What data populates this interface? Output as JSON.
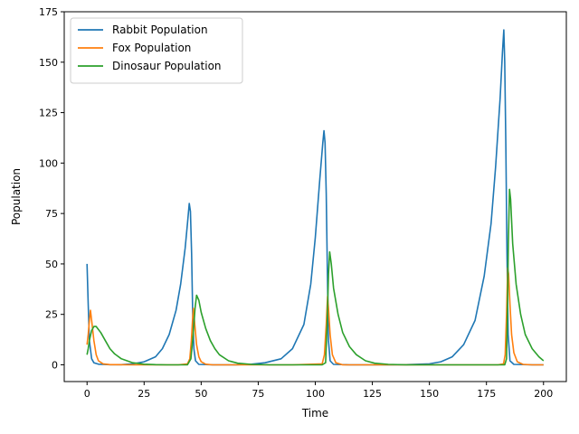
{
  "chart_data": {
    "type": "line",
    "title": "",
    "xlabel": "Time",
    "ylabel": "Population",
    "xlim": [
      -10,
      210
    ],
    "ylim": [
      -8.3,
      175
    ],
    "xticks": [
      0,
      25,
      50,
      75,
      100,
      125,
      150,
      175,
      200
    ],
    "yticks": [
      0,
      25,
      50,
      75,
      100,
      125,
      150,
      175
    ],
    "grid": false,
    "legend_position": "top-left",
    "series": [
      {
        "name": "Rabbit Population",
        "color": "#1f77b4",
        "points": [
          [
            0,
            50
          ],
          [
            0.5,
            30
          ],
          [
            1,
            12
          ],
          [
            2,
            3
          ],
          [
            3,
            1
          ],
          [
            5,
            0.3
          ],
          [
            10,
            0.1
          ],
          [
            15,
            0.1
          ],
          [
            20,
            0.5
          ],
          [
            25,
            1.5
          ],
          [
            30,
            4
          ],
          [
            33,
            8
          ],
          [
            36,
            15
          ],
          [
            39,
            27
          ],
          [
            41,
            40
          ],
          [
            43,
            58
          ],
          [
            44,
            70
          ],
          [
            44.8,
            80
          ],
          [
            45.3,
            76
          ],
          [
            45.8,
            55
          ],
          [
            46.3,
            25
          ],
          [
            46.8,
            8
          ],
          [
            47.5,
            2
          ],
          [
            49,
            0.2
          ],
          [
            55,
            0
          ],
          [
            65,
            0
          ],
          [
            72,
            0.3
          ],
          [
            78,
            1
          ],
          [
            85,
            3
          ],
          [
            90,
            8
          ],
          [
            95,
            20
          ],
          [
            98,
            40
          ],
          [
            100,
            63
          ],
          [
            102,
            92
          ],
          [
            103.3,
            110
          ],
          [
            103.8,
            116
          ],
          [
            104.3,
            110
          ],
          [
            104.8,
            85
          ],
          [
            105.3,
            45
          ],
          [
            105.8,
            12
          ],
          [
            106.5,
            2
          ],
          [
            108,
            0.2
          ],
          [
            115,
            0
          ],
          [
            130,
            0
          ],
          [
            140,
            0.1
          ],
          [
            150,
            0.5
          ],
          [
            155,
            1.5
          ],
          [
            160,
            4
          ],
          [
            165,
            10
          ],
          [
            170,
            22
          ],
          [
            174,
            44
          ],
          [
            177,
            70
          ],
          [
            179,
            98
          ],
          [
            181,
            132
          ],
          [
            182,
            155
          ],
          [
            182.6,
            166
          ],
          [
            183,
            150
          ],
          [
            183.5,
            110
          ],
          [
            184,
            55
          ],
          [
            184.5,
            15
          ],
          [
            185.3,
            2
          ],
          [
            187,
            0.2
          ],
          [
            195,
            0
          ],
          [
            200,
            0
          ]
        ]
      },
      {
        "name": "Fox Population",
        "color": "#ff7f0e",
        "points": [
          [
            0,
            10
          ],
          [
            0.5,
            15
          ],
          [
            1,
            22
          ],
          [
            1.5,
            27
          ],
          [
            2,
            22
          ],
          [
            3,
            12
          ],
          [
            4,
            5
          ],
          [
            5,
            2
          ],
          [
            7,
            0.5
          ],
          [
            10,
            0.1
          ],
          [
            20,
            0
          ],
          [
            40,
            0
          ],
          [
            44,
            0.5
          ],
          [
            45,
            3
          ],
          [
            45.7,
            12
          ],
          [
            46.2,
            22
          ],
          [
            46.6,
            28
          ],
          [
            47.2,
            20
          ],
          [
            48,
            10
          ],
          [
            49,
            4
          ],
          [
            50,
            1.5
          ],
          [
            52,
            0.3
          ],
          [
            55,
            0
          ],
          [
            90,
            0
          ],
          [
            103,
            0.5
          ],
          [
            104,
            5
          ],
          [
            104.8,
            20
          ],
          [
            105.4,
            34
          ],
          [
            105.8,
            28
          ],
          [
            106.5,
            15
          ],
          [
            107.5,
            5
          ],
          [
            109,
            1
          ],
          [
            112,
            0
          ],
          [
            180,
            0
          ],
          [
            182.5,
            0.5
          ],
          [
            183.2,
            5
          ],
          [
            183.8,
            25
          ],
          [
            184.3,
            48
          ],
          [
            184.7,
            45
          ],
          [
            185.3,
            30
          ],
          [
            186,
            15
          ],
          [
            187,
            6
          ],
          [
            188.5,
            1.5
          ],
          [
            191,
            0.2
          ],
          [
            195,
            0
          ],
          [
            200,
            0
          ]
        ]
      },
      {
        "name": "Dinosaur Population",
        "color": "#2ca02c",
        "points": [
          [
            0,
            5
          ],
          [
            0.5,
            8
          ],
          [
            1,
            12
          ],
          [
            2,
            17
          ],
          [
            3,
            19
          ],
          [
            4,
            19
          ],
          [
            6,
            16
          ],
          [
            8,
            12
          ],
          [
            10,
            8
          ],
          [
            12,
            5.5
          ],
          [
            15,
            3
          ],
          [
            20,
            1
          ],
          [
            25,
            0.3
          ],
          [
            30,
            0.1
          ],
          [
            35,
            0
          ],
          [
            44,
            0
          ],
          [
            45.5,
            3
          ],
          [
            46.5,
            15
          ],
          [
            47.3,
            28
          ],
          [
            48,
            34.5
          ],
          [
            49,
            32
          ],
          [
            50,
            26
          ],
          [
            52,
            18
          ],
          [
            54,
            12
          ],
          [
            56,
            8
          ],
          [
            58,
            5
          ],
          [
            62,
            2
          ],
          [
            66,
            0.8
          ],
          [
            72,
            0.2
          ],
          [
            80,
            0
          ],
          [
            103,
            0
          ],
          [
            104.5,
            1
          ],
          [
            105.2,
            20
          ],
          [
            105.8,
            45
          ],
          [
            106.3,
            56
          ],
          [
            107,
            50
          ],
          [
            108,
            38
          ],
          [
            110,
            25
          ],
          [
            112,
            16
          ],
          [
            115,
            9
          ],
          [
            118,
            5
          ],
          [
            122,
            2
          ],
          [
            126,
            0.8
          ],
          [
            132,
            0.2
          ],
          [
            140,
            0
          ],
          [
            183,
            0
          ],
          [
            183.8,
            3
          ],
          [
            184.2,
            25
          ],
          [
            184.6,
            60
          ],
          [
            185.1,
            87
          ],
          [
            185.6,
            82
          ],
          [
            186.5,
            60
          ],
          [
            188,
            40
          ],
          [
            190,
            25
          ],
          [
            192,
            15
          ],
          [
            195,
            8
          ],
          [
            198,
            4
          ],
          [
            200,
            2
          ]
        ]
      }
    ]
  }
}
